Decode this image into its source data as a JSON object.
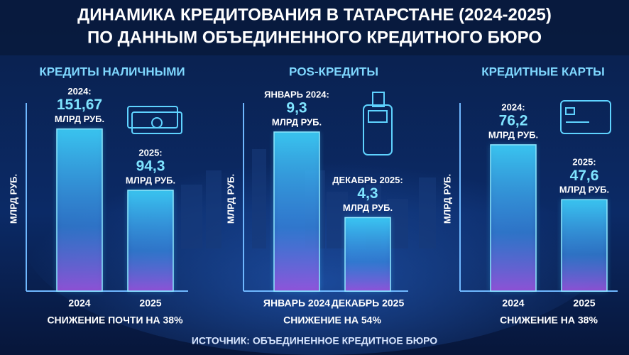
{
  "title": "ДИНАМИКА КРЕДИТОВАНИЯ В ТАТАРСТАНЕ (2024-2025)",
  "subtitle": "ПО ДАННЫМ ОБЪЕДИНЕННОГО КРЕДИТНОГО БЮРО",
  "source": "ИСТОЧНИК: ОБЪЕДИНЕННОЕ КРЕДИТНОЕ БЮРО",
  "chart_data": [
    {
      "type": "bar",
      "title": "КРЕДИТЫ НАЛИЧНЫМИ",
      "ylabel": "МЛРД РУБ.",
      "categories": [
        "2024",
        "2025"
      ],
      "bar_labels": [
        "2024:",
        "2025:"
      ],
      "values": [
        151.67,
        94.3
      ],
      "value_labels": [
        "151,67",
        "94,3"
      ],
      "unit": "МЛРД РУБ.",
      "ylim": [
        0,
        176
      ],
      "note": "СНИЖЕНИЕ ПОЧТИ НА 38%"
    },
    {
      "type": "bar",
      "title": "POS-КРЕДИТЫ",
      "ylabel": "МЛРД РУБ.",
      "categories": [
        "ЯНВАРЬ 2024",
        "ДЕКАБРЬ 2025"
      ],
      "bar_labels": [
        "ЯНВАРЬ 2024:",
        "ДЕКАБРЬ 2025:"
      ],
      "values": [
        9.3,
        4.3
      ],
      "value_labels": [
        "9,3",
        "4,3"
      ],
      "unit": "МЛРД РУБ.",
      "ylim": [
        0,
        11
      ],
      "note": "СНИЖЕНИЕ НА 54%"
    },
    {
      "type": "bar",
      "title": "КРЕДИТНЫЕ КАРТЫ",
      "ylabel": "МЛРД РУБ.",
      "categories": [
        "2024",
        "2025"
      ],
      "bar_labels": [
        "2024:",
        "2025:"
      ],
      "values": [
        76.2,
        47.6
      ],
      "value_labels": [
        "76,2",
        "47,6"
      ],
      "unit": "МЛРД РУБ.",
      "ylim": [
        0,
        98
      ],
      "note": "СНИЖЕНИЕ НА 38%"
    }
  ]
}
